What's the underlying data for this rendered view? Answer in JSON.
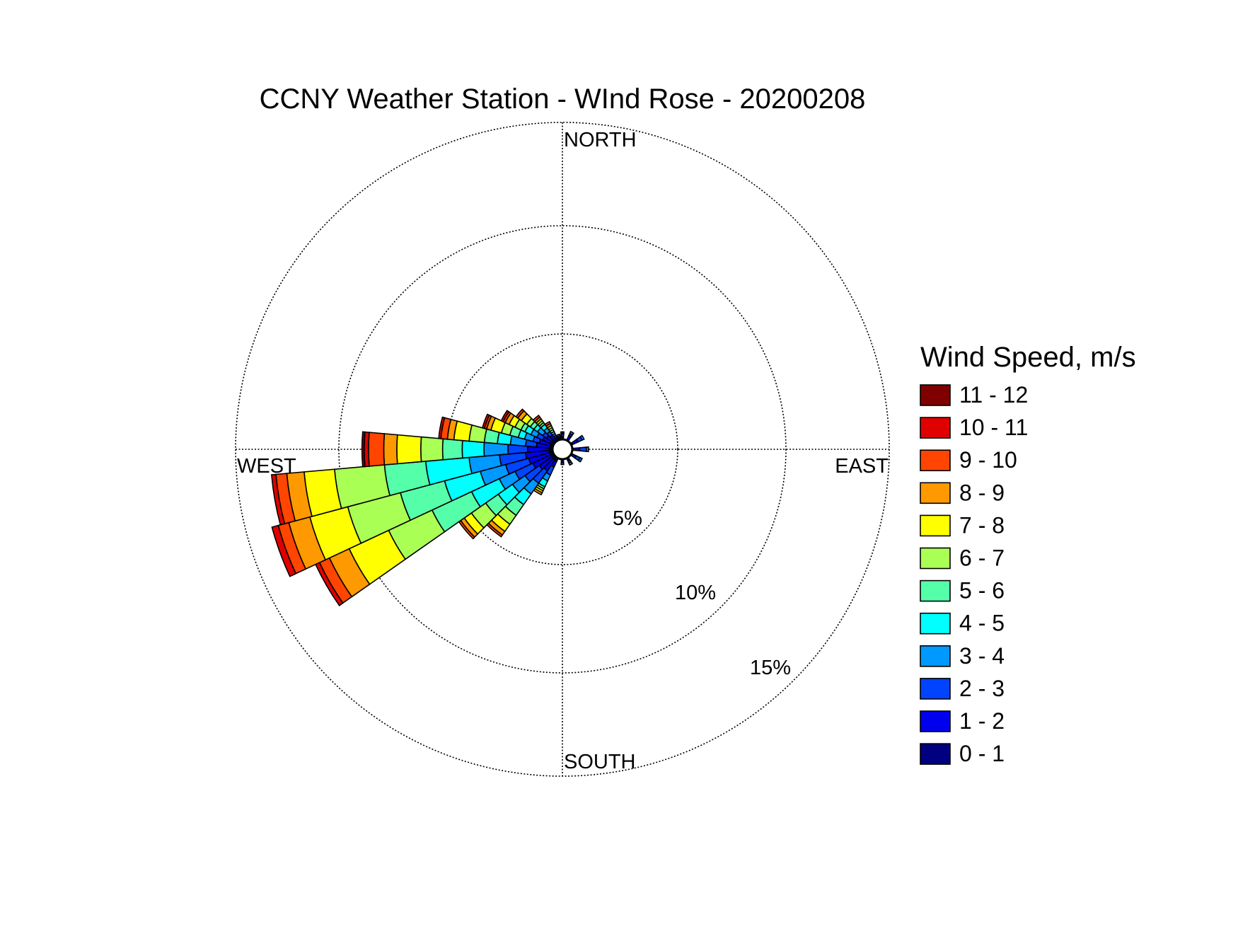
{
  "chart_data": {
    "type": "windrose",
    "title": "CCNY Weather Station - WInd Rose - 20200208",
    "directions": [
      "NORTH",
      "EAST",
      "SOUTH",
      "WEST"
    ],
    "radial_ticks": [
      {
        "value": 5,
        "label": "5%"
      },
      {
        "value": 10,
        "label": "10%"
      },
      {
        "value": 15,
        "label": "15%"
      }
    ],
    "rmax": 15,
    "grid": true,
    "legend": {
      "title": "Wind Speed, m/s",
      "placement": "right",
      "bins": [
        {
          "label": "11 - 12",
          "color": "#800000"
        },
        {
          "label": "10 - 11",
          "color": "#e00000"
        },
        {
          "label": "9 - 10",
          "color": "#ff4500"
        },
        {
          "label": "8 - 9",
          "color": "#ff9900"
        },
        {
          "label": "7 - 8",
          "color": "#ffff00"
        },
        {
          "label": "6 - 7",
          "color": "#aaff55"
        },
        {
          "label": "5 - 6",
          "color": "#55ffaa"
        },
        {
          "label": "4 - 5",
          "color": "#00ffff"
        },
        {
          "label": "3 - 4",
          "color": "#0099ff"
        },
        {
          "label": "2 - 3",
          "color": "#0044ff"
        },
        {
          "label": "1 - 2",
          "color": "#0000ee"
        },
        {
          "label": "0 - 1",
          "color": "#000080"
        }
      ]
    },
    "sector_width_deg": 10,
    "speed_bins_ascending": [
      "0 - 1",
      "1 - 2",
      "2 - 3",
      "3 - 4",
      "4 - 5",
      "5 - 6",
      "6 - 7",
      "7 - 8",
      "8 - 9",
      "9 - 10",
      "10 - 11",
      "11 - 12"
    ],
    "sectors": [
      {
        "direction_deg": 0,
        "cumulative_percent": [
          0.5,
          0.6,
          0.7,
          0.75,
          0.8,
          0.8,
          0.8,
          0.8,
          0.8,
          0.8,
          0.8,
          0.8
        ]
      },
      {
        "direction_deg": 30,
        "cumulative_percent": [
          0.5,
          0.7,
          0.8,
          0.9,
          0.9,
          0.9,
          0.9,
          0.9,
          0.9,
          0.9,
          0.9,
          0.9
        ]
      },
      {
        "direction_deg": 60,
        "cumulative_percent": [
          0.5,
          0.8,
          1.0,
          1.1,
          1.1,
          1.1,
          1.1,
          1.1,
          1.1,
          1.1,
          1.1,
          1.1
        ]
      },
      {
        "direction_deg": 90,
        "cumulative_percent": [
          0.5,
          0.8,
          1.1,
          1.2,
          1.2,
          1.2,
          1.2,
          1.2,
          1.2,
          1.2,
          1.2,
          1.2
        ]
      },
      {
        "direction_deg": 120,
        "cumulative_percent": [
          0.5,
          0.7,
          0.9,
          1.0,
          1.0,
          1.0,
          1.0,
          1.0,
          1.0,
          1.0,
          1.0,
          1.0
        ]
      },
      {
        "direction_deg": 150,
        "cumulative_percent": [
          0.5,
          0.6,
          0.7,
          0.8,
          0.8,
          0.8,
          0.8,
          0.8,
          0.8,
          0.8,
          0.8,
          0.8
        ]
      },
      {
        "direction_deg": 180,
        "cumulative_percent": [
          0.5,
          0.6,
          0.7,
          0.7,
          0.7,
          0.7,
          0.7,
          0.7,
          0.7,
          0.7,
          0.7,
          0.7
        ]
      },
      {
        "direction_deg": 210,
        "cumulative_percent": [
          0.6,
          0.9,
          1.3,
          1.6,
          1.9,
          2.0,
          2.1,
          2.2,
          2.3,
          2.3,
          2.3,
          2.3
        ]
      },
      {
        "direction_deg": 220,
        "cumulative_percent": [
          0.6,
          1.2,
          1.9,
          2.5,
          3.1,
          3.7,
          4.2,
          4.6,
          4.8,
          4.9,
          4.9,
          4.9
        ]
      },
      {
        "direction_deg": 230,
        "cumulative_percent": [
          0.6,
          1.3,
          2.1,
          2.8,
          3.6,
          4.3,
          5.1,
          5.5,
          5.7,
          5.8,
          5.8,
          5.8
        ]
      },
      {
        "direction_deg": 240,
        "cumulative_percent": [
          0.6,
          1.5,
          2.4,
          3.2,
          4.6,
          6.6,
          8.8,
          10.8,
          11.8,
          12.3,
          12.5,
          12.5
        ]
      },
      {
        "direction_deg": 250,
        "cumulative_percent": [
          0.6,
          1.6,
          2.7,
          3.9,
          5.6,
          7.7,
          10.2,
          12.0,
          13.0,
          13.5,
          13.8,
          13.8
        ]
      },
      {
        "direction_deg": 260,
        "cumulative_percent": [
          0.6,
          1.7,
          2.9,
          4.3,
          6.3,
          8.2,
          10.5,
          11.9,
          12.7,
          13.2,
          13.4,
          13.4
        ]
      },
      {
        "direction_deg": 270,
        "cumulative_percent": [
          0.6,
          1.6,
          2.5,
          3.6,
          4.6,
          5.5,
          6.5,
          7.6,
          8.2,
          8.9,
          9.1,
          9.2
        ]
      },
      {
        "direction_deg": 280,
        "cumulative_percent": [
          0.6,
          1.2,
          1.7,
          2.4,
          3.0,
          3.6,
          4.3,
          5.0,
          5.3,
          5.6,
          5.7,
          5.7
        ]
      },
      {
        "direction_deg": 290,
        "cumulative_percent": [
          0.6,
          1.1,
          1.4,
          1.8,
          2.1,
          2.5,
          2.9,
          3.4,
          3.6,
          3.7,
          3.8,
          3.8
        ]
      },
      {
        "direction_deg": 300,
        "cumulative_percent": [
          0.6,
          1.0,
          1.3,
          1.6,
          1.9,
          2.1,
          2.4,
          2.7,
          2.9,
          3.0,
          3.1,
          3.1
        ]
      },
      {
        "direction_deg": 310,
        "cumulative_percent": [
          0.6,
          0.9,
          1.1,
          1.4,
          1.6,
          1.8,
          2.0,
          2.3,
          2.5,
          2.6,
          2.6,
          2.6
        ]
      },
      {
        "direction_deg": 320,
        "cumulative_percent": [
          0.5,
          0.8,
          1.0,
          1.2,
          1.4,
          1.5,
          1.6,
          1.7,
          1.8,
          1.9,
          1.9,
          1.9
        ]
      },
      {
        "direction_deg": 330,
        "cumulative_percent": [
          0.5,
          0.6,
          0.7,
          0.8,
          0.9,
          1.0,
          1.1,
          1.2,
          1.3,
          1.4,
          1.4,
          1.4
        ]
      },
      {
        "direction_deg": 345,
        "cumulative_percent": [
          0.5,
          0.6,
          0.7,
          0.7,
          0.7,
          0.7,
          0.7,
          0.7,
          0.7,
          0.7,
          0.7,
          0.7
        ]
      }
    ]
  }
}
